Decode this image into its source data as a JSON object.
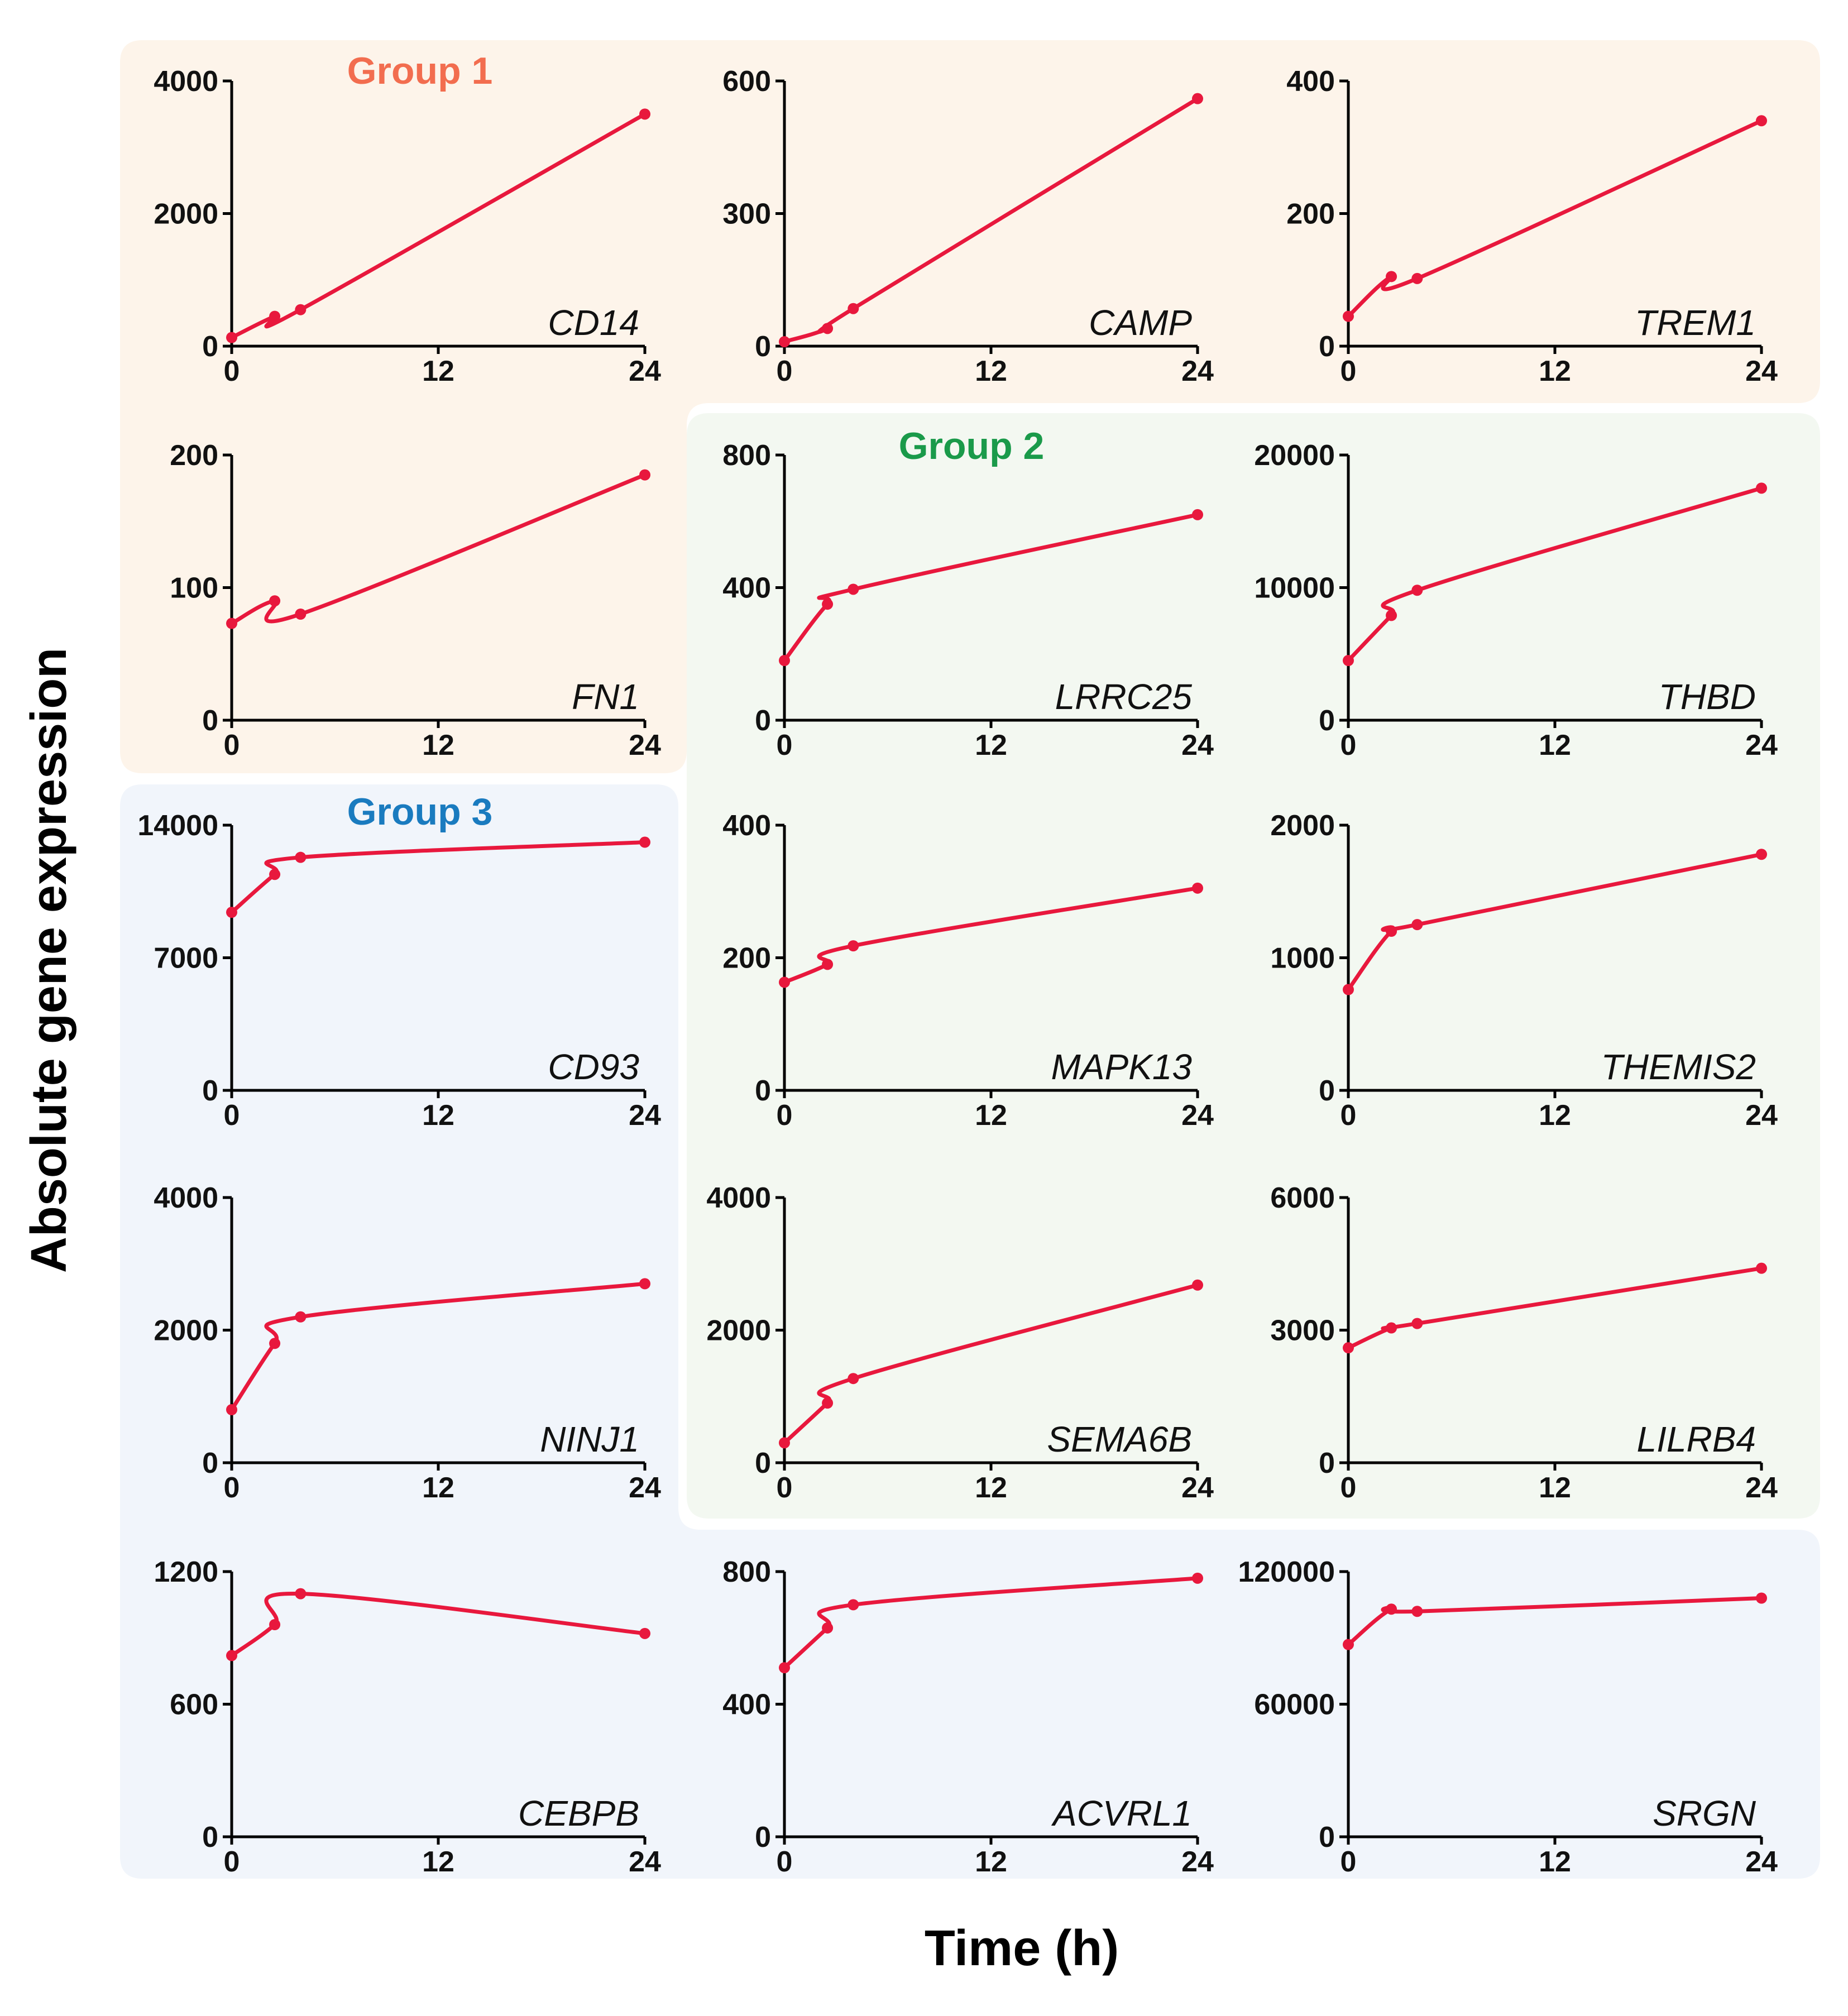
{
  "figure": {
    "ylabel": "Absolute gene expression",
    "xlabel": "Time (h)",
    "x_ticks": [
      "0",
      "12",
      "24"
    ],
    "line_color": "#e8183d"
  },
  "groups": [
    {
      "name": "Group 1",
      "color": "#f26d4f",
      "background": "#fdf4ea"
    },
    {
      "name": "Group 2",
      "color": "#1a9a4a",
      "background": "#f3f8f1"
    },
    {
      "name": "Group 3",
      "color": "#1a7bbf",
      "background": "#f1f5fb"
    }
  ],
  "chart_data": [
    {
      "type": "line",
      "title": "CD14",
      "group": "Group 1",
      "x": [
        0,
        2.5,
        4,
        24
      ],
      "values": [
        130,
        450,
        550,
        3500
      ],
      "ylim": [
        0,
        4000
      ],
      "yticks": [
        "0",
        "2000",
        "4000"
      ],
      "xlim": [
        0,
        24
      ],
      "xticks": [
        "0",
        "12",
        "24"
      ]
    },
    {
      "type": "line",
      "title": "CAMP",
      "group": "Group 1",
      "x": [
        0,
        2.5,
        4,
        24
      ],
      "values": [
        10,
        40,
        85,
        560
      ],
      "ylim": [
        0,
        600
      ],
      "yticks": [
        "0",
        "300",
        "600"
      ],
      "xlim": [
        0,
        24
      ],
      "xticks": [
        "0",
        "12",
        "24"
      ]
    },
    {
      "type": "line",
      "title": "TREM1",
      "group": "Group 1",
      "x": [
        0,
        2.5,
        4,
        24
      ],
      "values": [
        45,
        105,
        102,
        340
      ],
      "ylim": [
        0,
        400
      ],
      "yticks": [
        "0",
        "200",
        "400"
      ],
      "xlim": [
        0,
        24
      ],
      "xticks": [
        "0",
        "12",
        "24"
      ]
    },
    {
      "type": "line",
      "title": "FN1",
      "group": "Group 1",
      "x": [
        0,
        2.5,
        4,
        24
      ],
      "values": [
        73,
        90,
        80,
        185
      ],
      "ylim": [
        0,
        200
      ],
      "yticks": [
        "0",
        "100",
        "200"
      ],
      "xlim": [
        0,
        24
      ],
      "xticks": [
        "0",
        "12",
        "24"
      ]
    },
    {
      "type": "line",
      "title": "LRRC25",
      "group": "Group 2",
      "x": [
        0,
        2.5,
        4,
        24
      ],
      "values": [
        180,
        350,
        395,
        620
      ],
      "ylim": [
        0,
        800
      ],
      "yticks": [
        "0",
        "400",
        "800"
      ],
      "xlim": [
        0,
        24
      ],
      "xticks": [
        "0",
        "12",
        "24"
      ]
    },
    {
      "type": "line",
      "title": "THBD",
      "group": "Group 2",
      "x": [
        0,
        2.5,
        4,
        24
      ],
      "values": [
        4500,
        7900,
        9800,
        17500
      ],
      "ylim": [
        0,
        20000
      ],
      "yticks": [
        "0",
        "10000",
        "20000"
      ],
      "xlim": [
        0,
        24
      ],
      "xticks": [
        "0",
        "12",
        "24"
      ]
    },
    {
      "type": "line",
      "title": "CD93",
      "group": "Group 3",
      "x": [
        0,
        2.5,
        4,
        24
      ],
      "values": [
        9400,
        11400,
        12300,
        13100
      ],
      "ylim": [
        0,
        14000
      ],
      "yticks": [
        "0",
        "7000",
        "14000"
      ],
      "xlim": [
        0,
        24
      ],
      "xticks": [
        "0",
        "12",
        "24"
      ]
    },
    {
      "type": "line",
      "title": "MAPK13",
      "group": "Group 2",
      "x": [
        0,
        2.5,
        4,
        24
      ],
      "values": [
        163,
        190,
        218,
        305
      ],
      "ylim": [
        0,
        400
      ],
      "yticks": [
        "0",
        "200",
        "400"
      ],
      "xlim": [
        0,
        24
      ],
      "xticks": [
        "0",
        "12",
        "24"
      ]
    },
    {
      "type": "line",
      "title": "THEMIS2",
      "group": "Group 2",
      "x": [
        0,
        2.5,
        4,
        24
      ],
      "values": [
        760,
        1200,
        1250,
        1780
      ],
      "ylim": [
        0,
        2000
      ],
      "yticks": [
        "0",
        "1000",
        "2000"
      ],
      "xlim": [
        0,
        24
      ],
      "xticks": [
        "0",
        "12",
        "24"
      ]
    },
    {
      "type": "line",
      "title": "NINJ1",
      "group": "Group 3",
      "x": [
        0,
        2.5,
        4,
        24
      ],
      "values": [
        800,
        1800,
        2200,
        2700
      ],
      "ylim": [
        0,
        4000
      ],
      "yticks": [
        "0",
        "2000",
        "4000"
      ],
      "xlim": [
        0,
        24
      ],
      "xticks": [
        "0",
        "12",
        "24"
      ]
    },
    {
      "type": "line",
      "title": "SEMA6B",
      "group": "Group 2",
      "x": [
        0,
        2.5,
        4,
        24
      ],
      "values": [
        300,
        900,
        1270,
        2680
      ],
      "ylim": [
        0,
        4000
      ],
      "yticks": [
        "0",
        "2000",
        "4000"
      ],
      "xlim": [
        0,
        24
      ],
      "xticks": [
        "0",
        "12",
        "24"
      ]
    },
    {
      "type": "line",
      "title": "LILRB4",
      "group": "Group 2",
      "x": [
        0,
        2.5,
        4,
        24
      ],
      "values": [
        2600,
        3050,
        3150,
        4400
      ],
      "ylim": [
        0,
        6000
      ],
      "yticks": [
        "0",
        "3000",
        "6000"
      ],
      "xlim": [
        0,
        24
      ],
      "xticks": [
        "0",
        "12",
        "24"
      ]
    },
    {
      "type": "line",
      "title": "CEBPB",
      "group": "Group 3",
      "x": [
        0,
        2.5,
        4,
        24
      ],
      "values": [
        820,
        960,
        1100,
        920
      ],
      "ylim": [
        0,
        1200
      ],
      "yticks": [
        "0",
        "600",
        "1200"
      ],
      "xlim": [
        0,
        24
      ],
      "xticks": [
        "0",
        "12",
        "24"
      ]
    },
    {
      "type": "line",
      "title": "ACVRL1",
      "group": "Group 3",
      "x": [
        0,
        2.5,
        4,
        24
      ],
      "values": [
        510,
        630,
        700,
        780
      ],
      "ylim": [
        0,
        800
      ],
      "yticks": [
        "0",
        "400",
        "800"
      ],
      "xlim": [
        0,
        24
      ],
      "xticks": [
        "0",
        "12",
        "24"
      ]
    },
    {
      "type": "line",
      "title": "SRGN",
      "group": "Group 3",
      "x": [
        0,
        2.5,
        4,
        24
      ],
      "values": [
        87000,
        103000,
        102000,
        108000
      ],
      "ylim": [
        0,
        120000
      ],
      "yticks": [
        "0",
        "60000",
        "120000"
      ],
      "xlim": [
        0,
        24
      ],
      "xticks": [
        "0",
        "12",
        "24"
      ]
    }
  ]
}
